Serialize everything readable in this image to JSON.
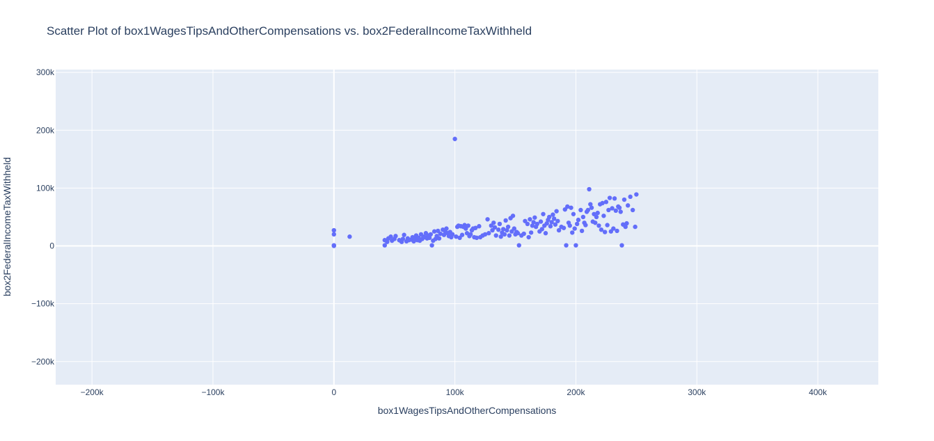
{
  "chart_data": {
    "type": "scatter",
    "title": "Scatter Plot of box1WagesTipsAndOtherCompensations vs. box2FederalIncomeTaxWithheld",
    "xlabel": "box1WagesTipsAndOtherCompensations",
    "ylabel": "box2FederalIncomeTaxWithheld",
    "xlim": [
      -230000,
      450000
    ],
    "ylim": [
      -240000,
      305000
    ],
    "x_ticks": [
      -200000,
      -100000,
      0,
      100000,
      200000,
      300000,
      400000
    ],
    "x_tick_labels": [
      "−200k",
      "−100k",
      "0",
      "100k",
      "200k",
      "300k",
      "400k"
    ],
    "y_ticks": [
      -200000,
      -100000,
      0,
      100000,
      200000,
      300000
    ],
    "y_tick_labels": [
      "−200k",
      "−100k",
      "0",
      "100k",
      "200k",
      "300k"
    ],
    "grid": true,
    "colors": {
      "plot_bg": "#e5ecf6",
      "grid": "#ffffff",
      "marker": "#636efa",
      "text": "#2a3f5f"
    },
    "series": [
      {
        "points": [
          [
            0,
            0
          ],
          [
            0,
            1000
          ],
          [
            0,
            20000
          ],
          [
            0,
            27000
          ],
          [
            13000,
            16000
          ],
          [
            42000,
            1000
          ],
          [
            42000,
            10000
          ],
          [
            44000,
            7000
          ],
          [
            45000,
            13000
          ],
          [
            47000,
            16000
          ],
          [
            48000,
            9000
          ],
          [
            50000,
            12000
          ],
          [
            51000,
            17000
          ],
          [
            54000,
            10000
          ],
          [
            55000,
            9000
          ],
          [
            56000,
            7000
          ],
          [
            57000,
            12000
          ],
          [
            58000,
            19000
          ],
          [
            60000,
            8000
          ],
          [
            61000,
            13000
          ],
          [
            62000,
            10000
          ],
          [
            64000,
            11000
          ],
          [
            65000,
            15000
          ],
          [
            66000,
            8000
          ],
          [
            67000,
            12000
          ],
          [
            68000,
            18000
          ],
          [
            69000,
            10000
          ],
          [
            70000,
            14000
          ],
          [
            71000,
            9000
          ],
          [
            72000,
            20000
          ],
          [
            73000,
            12000
          ],
          [
            74000,
            16000
          ],
          [
            75000,
            15000
          ],
          [
            76000,
            22000
          ],
          [
            77000,
            13000
          ],
          [
            78000,
            18000
          ],
          [
            79000,
            14000
          ],
          [
            80000,
            20000
          ],
          [
            81000,
            1000
          ],
          [
            82000,
            9000
          ],
          [
            83000,
            25000
          ],
          [
            84000,
            12000
          ],
          [
            85000,
            17000
          ],
          [
            86000,
            26000
          ],
          [
            87000,
            13000
          ],
          [
            88000,
            21000
          ],
          [
            90000,
            28000
          ],
          [
            91000,
            19000
          ],
          [
            92000,
            25000
          ],
          [
            93000,
            30000
          ],
          [
            94000,
            22000
          ],
          [
            95000,
            17000
          ],
          [
            96000,
            24000
          ],
          [
            97000,
            15000
          ],
          [
            98000,
            20000
          ],
          [
            100000,
            185000
          ],
          [
            101000,
            16000
          ],
          [
            102000,
            33000
          ],
          [
            103000,
            35000
          ],
          [
            104000,
            14000
          ],
          [
            105000,
            34000
          ],
          [
            106000,
            19000
          ],
          [
            107000,
            33000
          ],
          [
            108000,
            36000
          ],
          [
            109000,
            30000
          ],
          [
            110000,
            22000
          ],
          [
            111000,
            35000
          ],
          [
            112000,
            17000
          ],
          [
            113000,
            20000
          ],
          [
            114000,
            27000
          ],
          [
            115000,
            30000
          ],
          [
            116000,
            15000
          ],
          [
            117000,
            31000
          ],
          [
            118000,
            14000
          ],
          [
            120000,
            34000
          ],
          [
            121000,
            15000
          ],
          [
            123000,
            18000
          ],
          [
            125000,
            20000
          ],
          [
            127000,
            46000
          ],
          [
            128000,
            22000
          ],
          [
            130000,
            35000
          ],
          [
            131000,
            27000
          ],
          [
            132000,
            40000
          ],
          [
            133000,
            32000
          ],
          [
            134000,
            18000
          ],
          [
            136000,
            28000
          ],
          [
            137000,
            38000
          ],
          [
            138000,
            16000
          ],
          [
            139000,
            23000
          ],
          [
            140000,
            29000
          ],
          [
            141000,
            20000
          ],
          [
            142000,
            44000
          ],
          [
            143000,
            27000
          ],
          [
            144000,
            33000
          ],
          [
            145000,
            18000
          ],
          [
            146000,
            48000
          ],
          [
            147000,
            25000
          ],
          [
            148000,
            52000
          ],
          [
            149000,
            30000
          ],
          [
            150000,
            20000
          ],
          [
            151000,
            24000
          ],
          [
            152000,
            22000
          ],
          [
            153000,
            1000
          ],
          [
            155000,
            18000
          ],
          [
            157000,
            21000
          ],
          [
            158000,
            43000
          ],
          [
            160000,
            38000
          ],
          [
            161000,
            15000
          ],
          [
            162000,
            46000
          ],
          [
            163000,
            23000
          ],
          [
            164000,
            35000
          ],
          [
            165000,
            41000
          ],
          [
            166000,
            49000
          ],
          [
            167000,
            33000
          ],
          [
            168000,
            38000
          ],
          [
            170000,
            25000
          ],
          [
            171000,
            42000
          ],
          [
            172000,
            29000
          ],
          [
            173000,
            55000
          ],
          [
            174000,
            35000
          ],
          [
            175000,
            22000
          ],
          [
            176000,
            39000
          ],
          [
            177000,
            45000
          ],
          [
            178000,
            50000
          ],
          [
            179000,
            34000
          ],
          [
            180000,
            41000
          ],
          [
            181000,
            54000
          ],
          [
            182000,
            47000
          ],
          [
            183000,
            37000
          ],
          [
            184000,
            60000
          ],
          [
            185000,
            43000
          ],
          [
            186000,
            27000
          ],
          [
            188000,
            33000
          ],
          [
            190000,
            31000
          ],
          [
            191000,
            63000
          ],
          [
            192000,
            1000
          ],
          [
            193000,
            68000
          ],
          [
            194000,
            40000
          ],
          [
            195000,
            35000
          ],
          [
            196000,
            66000
          ],
          [
            197000,
            23000
          ],
          [
            198000,
            55000
          ],
          [
            199000,
            30000
          ],
          [
            200000,
            1000
          ],
          [
            201000,
            38000
          ],
          [
            202000,
            45000
          ],
          [
            204000,
            62000
          ],
          [
            205000,
            26000
          ],
          [
            206000,
            50000
          ],
          [
            207000,
            40000
          ],
          [
            208000,
            36000
          ],
          [
            209000,
            59000
          ],
          [
            210000,
            62000
          ],
          [
            211000,
            98000
          ],
          [
            212000,
            72000
          ],
          [
            213000,
            66000
          ],
          [
            214000,
            42000
          ],
          [
            215000,
            55000
          ],
          [
            216000,
            40000
          ],
          [
            217000,
            50000
          ],
          [
            218000,
            57000
          ],
          [
            219000,
            35000
          ],
          [
            220000,
            72000
          ],
          [
            221000,
            28000
          ],
          [
            222000,
            74000
          ],
          [
            223000,
            52000
          ],
          [
            224000,
            24000
          ],
          [
            225000,
            76000
          ],
          [
            226000,
            36000
          ],
          [
            227000,
            62000
          ],
          [
            228000,
            83000
          ],
          [
            229000,
            25000
          ],
          [
            230000,
            65000
          ],
          [
            231000,
            30000
          ],
          [
            232000,
            82000
          ],
          [
            233000,
            61000
          ],
          [
            234000,
            26000
          ],
          [
            235000,
            68000
          ],
          [
            236000,
            66000
          ],
          [
            237000,
            59000
          ],
          [
            238000,
            1000
          ],
          [
            239000,
            37000
          ],
          [
            240000,
            80000
          ],
          [
            241000,
            33000
          ],
          [
            242000,
            39000
          ],
          [
            243000,
            70000
          ],
          [
            245000,
            85000
          ],
          [
            247000,
            62000
          ],
          [
            249000,
            33000
          ],
          [
            250000,
            89000
          ]
        ]
      }
    ]
  }
}
